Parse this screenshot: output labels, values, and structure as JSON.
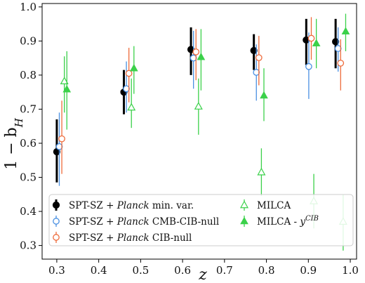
{
  "chart_data": {
    "type": "scatter",
    "xlabel": "z",
    "ylabel": "1 − b",
    "ylabel_sub": "H",
    "xlim": [
      0.265,
      1.015
    ],
    "ylim": [
      0.26,
      1.01
    ],
    "xticks": [
      0.3,
      0.4,
      0.5,
      0.6,
      0.7,
      0.8,
      0.9,
      1.0
    ],
    "yticks": [
      0.3,
      0.4,
      0.5,
      0.6,
      0.7,
      0.8,
      0.9,
      1.0
    ],
    "xtick_labels": [
      "0.3",
      "0.4",
      "0.5",
      "0.6",
      "0.7",
      "0.8",
      "0.9",
      "1.0"
    ],
    "ytick_labels": [
      "0.3",
      "0.4",
      "0.5",
      "0.6",
      "0.7",
      "0.8",
      "0.9",
      "1.0"
    ],
    "legend_position": "lower-center",
    "series": [
      {
        "name": "SPT-SZ + Planck min. var.",
        "legend_parts": [
          "SPT-SZ + ",
          "Planck",
          " min. var."
        ],
        "marker": "circle-filled",
        "color": "#000000",
        "points": [
          {
            "x": 0.3,
            "y": 0.575,
            "ylo": 0.485,
            "yhi": 0.67
          },
          {
            "x": 0.46,
            "y": 0.75,
            "ylo": 0.685,
            "yhi": 0.815
          },
          {
            "x": 0.62,
            "y": 0.875,
            "ylo": 0.8,
            "yhi": 0.94
          },
          {
            "x": 0.77,
            "y": 0.872,
            "ylo": 0.815,
            "yhi": 0.92
          },
          {
            "x": 0.895,
            "y": 0.903,
            "ylo": 0.83,
            "yhi": 0.965
          },
          {
            "x": 0.965,
            "y": 0.898,
            "ylo": 0.82,
            "yhi": 0.965
          }
        ]
      },
      {
        "name": "SPT-SZ + Planck CMB-CIB-null",
        "legend_parts": [
          "SPT-SZ + ",
          "Planck",
          " CMB-CIB-null"
        ],
        "marker": "circle-open",
        "color": "#4a90e2",
        "points": [
          {
            "x": 0.306,
            "y": 0.59,
            "ylo": 0.475,
            "yhi": 0.69
          },
          {
            "x": 0.466,
            "y": 0.76,
            "ylo": 0.69,
            "yhi": 0.84
          },
          {
            "x": 0.626,
            "y": 0.85,
            "ylo": 0.76,
            "yhi": 0.93
          },
          {
            "x": 0.776,
            "y": 0.808,
            "ylo": 0.725,
            "yhi": 0.89
          },
          {
            "x": 0.901,
            "y": 0.825,
            "ylo": 0.73,
            "yhi": 0.925
          },
          {
            "x": 0.971,
            "y": 0.878,
            "ylo": 0.81,
            "yhi": 0.94
          }
        ]
      },
      {
        "name": "SPT-SZ + Planck CIB-null",
        "legend_parts": [
          "SPT-SZ + ",
          "Planck",
          " CIB-null"
        ],
        "marker": "circle-open",
        "color": "#ee6b3b",
        "points": [
          {
            "x": 0.312,
            "y": 0.613,
            "ylo": 0.51,
            "yhi": 0.725
          },
          {
            "x": 0.472,
            "y": 0.805,
            "ylo": 0.72,
            "yhi": 0.88
          },
          {
            "x": 0.632,
            "y": 0.868,
            "ylo": 0.785,
            "yhi": 0.935
          },
          {
            "x": 0.782,
            "y": 0.851,
            "ylo": 0.77,
            "yhi": 0.915
          },
          {
            "x": 0.907,
            "y": 0.908,
            "ylo": 0.845,
            "yhi": 0.97
          },
          {
            "x": 0.977,
            "y": 0.835,
            "ylo": 0.755,
            "yhi": 0.905
          }
        ]
      },
      {
        "name": "MILCA",
        "legend_parts": [
          "MILCA"
        ],
        "marker": "triangle-open",
        "color": "#3bd14a",
        "points": [
          {
            "x": 0.318,
            "y": 0.782,
            "ylo": 0.69,
            "yhi": 0.855
          },
          {
            "x": 0.478,
            "y": 0.705,
            "ylo": 0.645,
            "yhi": 0.79
          },
          {
            "x": 0.638,
            "y": 0.708,
            "ylo": 0.625,
            "yhi": 0.79
          },
          {
            "x": 0.788,
            "y": 0.515,
            "ylo": 0.445,
            "yhi": 0.585
          },
          {
            "x": 0.913,
            "y": 0.43,
            "ylo": 0.35,
            "yhi": 0.51
          },
          {
            "x": 0.983,
            "y": 0.37,
            "ylo": 0.285,
            "yhi": 0.45
          }
        ]
      },
      {
        "name": "MILCA - y^CIB",
        "legend_parts": [
          "MILCA - ",
          "y",
          "CIB"
        ],
        "marker": "triangle-filled",
        "color": "#3bd14a",
        "points": [
          {
            "x": 0.324,
            "y": 0.758,
            "ylo": 0.64,
            "yhi": 0.87
          },
          {
            "x": 0.484,
            "y": 0.82,
            "ylo": 0.745,
            "yhi": 0.885
          },
          {
            "x": 0.644,
            "y": 0.853,
            "ylo": 0.755,
            "yhi": 0.935
          },
          {
            "x": 0.794,
            "y": 0.74,
            "ylo": 0.665,
            "yhi": 0.82
          },
          {
            "x": 0.919,
            "y": 0.893,
            "ylo": 0.82,
            "yhi": 0.965
          },
          {
            "x": 0.989,
            "y": 0.928,
            "ylo": 0.87,
            "yhi": 0.98
          }
        ]
      }
    ]
  }
}
